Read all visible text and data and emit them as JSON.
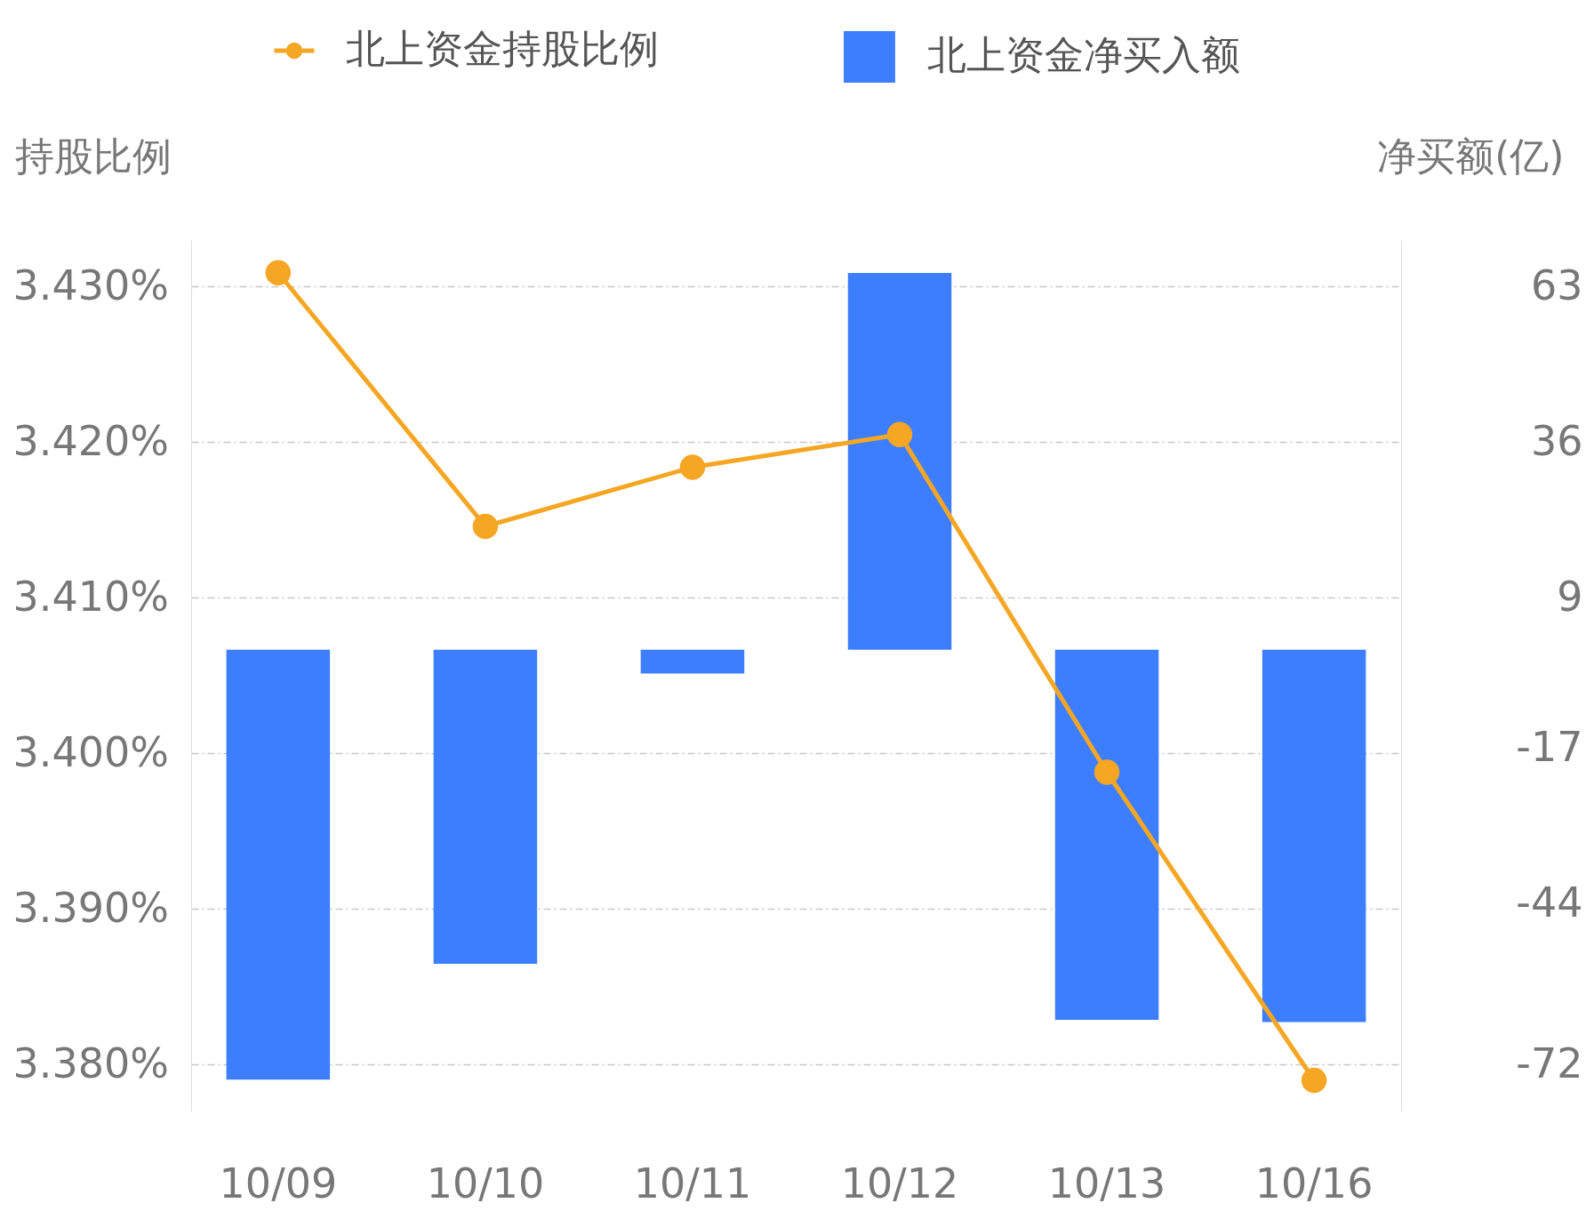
{
  "chart_data": {
    "type": "bar",
    "ylabel": "持股比例",
    "y2label": "净买额(亿)",
    "categories": [
      "10/09",
      "10/10",
      "10/11",
      "10/12",
      "10/13",
      "10/16"
    ],
    "series": [
      {
        "name": "北上资金净买入额",
        "axis": "y2",
        "color": "#3d7eff",
        "values": [
          -74.6,
          -54.5,
          -4.1,
          65.4,
          -64.2,
          -64.6
        ]
      },
      {
        "name": "北上资金持股比例",
        "type": "line",
        "color": "#f5a623",
        "marker": "circle",
        "values": [
          3.4309,
          3.4146,
          3.4184,
          3.4205,
          3.3988,
          3.379
        ]
      }
    ],
    "ylim": [
      3.377,
      3.433
    ],
    "yticks": [
      {
        "value": 3.38,
        "label": "3.380%"
      },
      {
        "value": 3.39,
        "label": "3.390%"
      },
      {
        "value": 3.4,
        "label": "3.400%"
      },
      {
        "value": 3.41,
        "label": "3.410%"
      },
      {
        "value": 3.42,
        "label": "3.420%"
      },
      {
        "value": 3.43,
        "label": "3.430%"
      }
    ],
    "y2lim": [
      -80.1,
      71.1
    ],
    "y2ticks": [
      -72,
      -44,
      -17,
      9,
      36,
      63
    ],
    "grid": "y",
    "legend": "top"
  }
}
